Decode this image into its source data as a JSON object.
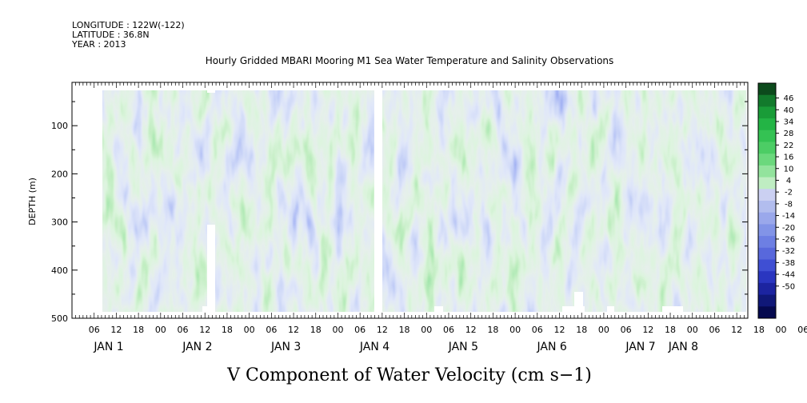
{
  "header": {
    "longitude": "LONGITUDE : 122W(-122)",
    "latitude": "LATITUDE : 36.8N",
    "year": "YEAR : 2013",
    "title": "Hourly Gridded MBARI Mooring M1 Sea Water Temperature and Salinity Observations"
  },
  "chart_data": {
    "type": "heatmap",
    "title": "Hourly Gridded MBARI Mooring M1 Sea Water Temperature and Salinity Observations",
    "variable": "V Component of Water Velocity (cm s-1)",
    "ylabel": "DEPTH (m)",
    "y_reversed": true,
    "ylim": [
      500,
      10
    ],
    "yticks": [
      100,
      200,
      300,
      400,
      500
    ],
    "xlim_hours": [
      0,
      183
    ],
    "x_hour_ticks": [
      "06",
      "12",
      "18",
      "00",
      "06",
      "12",
      "18",
      "00",
      "06",
      "12",
      "18",
      "00",
      "06",
      "12",
      "18",
      "00",
      "06",
      "12",
      "18",
      "00",
      "06",
      "12",
      "18",
      "00",
      "06",
      "12",
      "18",
      "00",
      "06",
      "12",
      "18",
      "00",
      "06",
      "12",
      "18",
      "00"
    ],
    "x_day_labels": [
      "JAN  1",
      "JAN  2",
      "JAN  3",
      "JAN  4",
      "JAN  5",
      "JAN  6",
      "JAN  7",
      "JAN  8"
    ],
    "colorbar_levels": [
      "46",
      "40",
      "34",
      "28",
      "22",
      "16",
      "10",
      "4",
      "-2",
      "-8",
      "-14",
      "-20",
      "-26",
      "-32",
      "-38",
      "-44",
      "-50"
    ],
    "colorbar_colors": [
      "#0c4a1c",
      "#127a2c",
      "#199c38",
      "#23b445",
      "#34c253",
      "#4ccd65",
      "#6bd87d",
      "#93e39d",
      "#bfedc2",
      "#cbd0f2",
      "#b2bdee",
      "#9aa8eb",
      "#8294e7",
      "#6d7fe3",
      "#5868dc",
      "#3f4fd3",
      "#2a36c0",
      "#1c24a0",
      "#101878",
      "#05094e"
    ],
    "missing_data": [
      "gap near JAN 2 14:00 below ~300 m",
      "gap JAN 3 06:00-07:00 full depth"
    ]
  },
  "footer": {
    "variable_label": "V Component of Water Velocity (cm s−1)"
  }
}
